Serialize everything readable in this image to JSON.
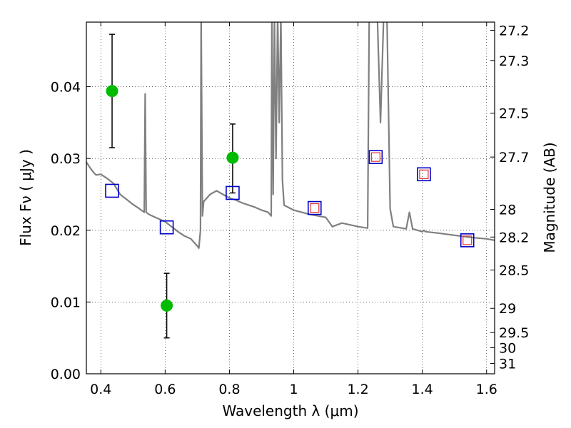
{
  "chart_data": {
    "type": "scatter",
    "xlabel": "Wavelength  λ (μm)",
    "ylabel": "Flux  Fν  ( μJy )",
    "y2label": "Magnitude (AB)",
    "xlim": [
      0.355,
      1.625
    ],
    "ylim": [
      0.0,
      0.049
    ],
    "grid": true,
    "grid_style": "dotted",
    "x_ticks": [
      0.4,
      0.6,
      0.8,
      1.0,
      1.2,
      1.4,
      1.6
    ],
    "x_tick_labels": [
      "0.4",
      "0.6",
      "0.8",
      "1",
      "1.2",
      "1.4",
      "1.6"
    ],
    "y_ticks": [
      0.0,
      0.01,
      0.02,
      0.03,
      0.04
    ],
    "y_tick_labels": [
      "0.00",
      "0.01",
      "0.02",
      "0.03",
      "0.04"
    ],
    "y2_ticks": [
      27.2,
      27.3,
      27.5,
      27.7,
      28,
      28.2,
      28.5,
      29,
      29.5,
      30,
      31
    ],
    "y2_tick_labels": [
      "27.2",
      "27.3",
      "27.5",
      "27.7",
      "28",
      "28.2",
      "28.5",
      "29",
      "29.5",
      "30",
      "31"
    ],
    "y2_zero_point": 23.9,
    "colors": {
      "spectrum": "#808080",
      "observed": "#00bb00",
      "model_bands": "#0000cc",
      "model_bands_inner": "#dd3333",
      "error_bars": "#000000"
    },
    "series": [
      {
        "type": "line",
        "x": [
          0.355,
          0.365,
          0.375,
          0.385,
          0.4,
          0.42,
          0.44,
          0.46,
          0.48,
          0.5,
          0.52,
          0.535,
          0.538,
          0.541,
          0.55,
          0.57,
          0.6,
          0.62,
          0.64,
          0.66,
          0.68,
          0.7,
          0.705,
          0.71,
          0.712,
          0.716,
          0.72,
          0.74,
          0.76,
          0.78,
          0.8,
          0.82,
          0.84,
          0.86,
          0.88,
          0.9,
          0.92,
          0.93,
          0.932,
          0.936,
          0.94,
          0.945,
          0.95,
          0.955,
          0.96,
          0.965,
          0.97,
          1.0,
          1.05,
          1.1,
          1.12,
          1.15,
          1.2,
          1.23,
          1.235,
          1.24,
          1.25,
          1.26,
          1.27,
          1.28,
          1.29,
          1.3,
          1.31,
          1.35,
          1.36,
          1.37,
          1.4,
          1.405,
          1.41,
          1.45,
          1.5,
          1.55,
          1.6,
          1.625
        ],
        "y": [
          0.0295,
          0.0288,
          0.0282,
          0.0277,
          0.0278,
          0.0272,
          0.0265,
          0.025,
          0.0243,
          0.0236,
          0.023,
          0.0225,
          0.039,
          0.0225,
          0.0222,
          0.0218,
          0.0212,
          0.0205,
          0.0198,
          0.0192,
          0.0188,
          0.0178,
          0.0175,
          0.02,
          0.05,
          0.022,
          0.024,
          0.025,
          0.0255,
          0.025,
          0.0245,
          0.0242,
          0.0238,
          0.0235,
          0.0232,
          0.0228,
          0.0225,
          0.022,
          0.05,
          0.025,
          0.05,
          0.03,
          0.05,
          0.035,
          0.05,
          0.027,
          0.0235,
          0.0228,
          0.0222,
          0.0218,
          0.0205,
          0.021,
          0.0205,
          0.0203,
          0.05,
          0.05,
          0.05,
          0.05,
          0.035,
          0.05,
          0.05,
          0.023,
          0.0205,
          0.0202,
          0.0225,
          0.0202,
          0.0198,
          0.02,
          0.0198,
          0.0196,
          0.0193,
          0.019,
          0.0188,
          0.0186
        ]
      },
      {
        "type": "scatter",
        "marker": "circle",
        "x": [
          0.435,
          0.605,
          0.81
        ],
        "y": [
          0.0394,
          0.0095,
          0.0301
        ],
        "yerr_low": [
          0.0079,
          0.0045,
          0.0049
        ],
        "yerr_high": [
          0.0079,
          0.0045,
          0.0047
        ]
      },
      {
        "type": "scatter",
        "marker": "square",
        "x": [
          0.435,
          0.605,
          0.81,
          1.065,
          1.255,
          1.405,
          1.54
        ],
        "y": [
          0.0255,
          0.0204,
          0.0252,
          0.0231,
          0.0302,
          0.0278,
          0.0186
        ]
      }
    ]
  }
}
